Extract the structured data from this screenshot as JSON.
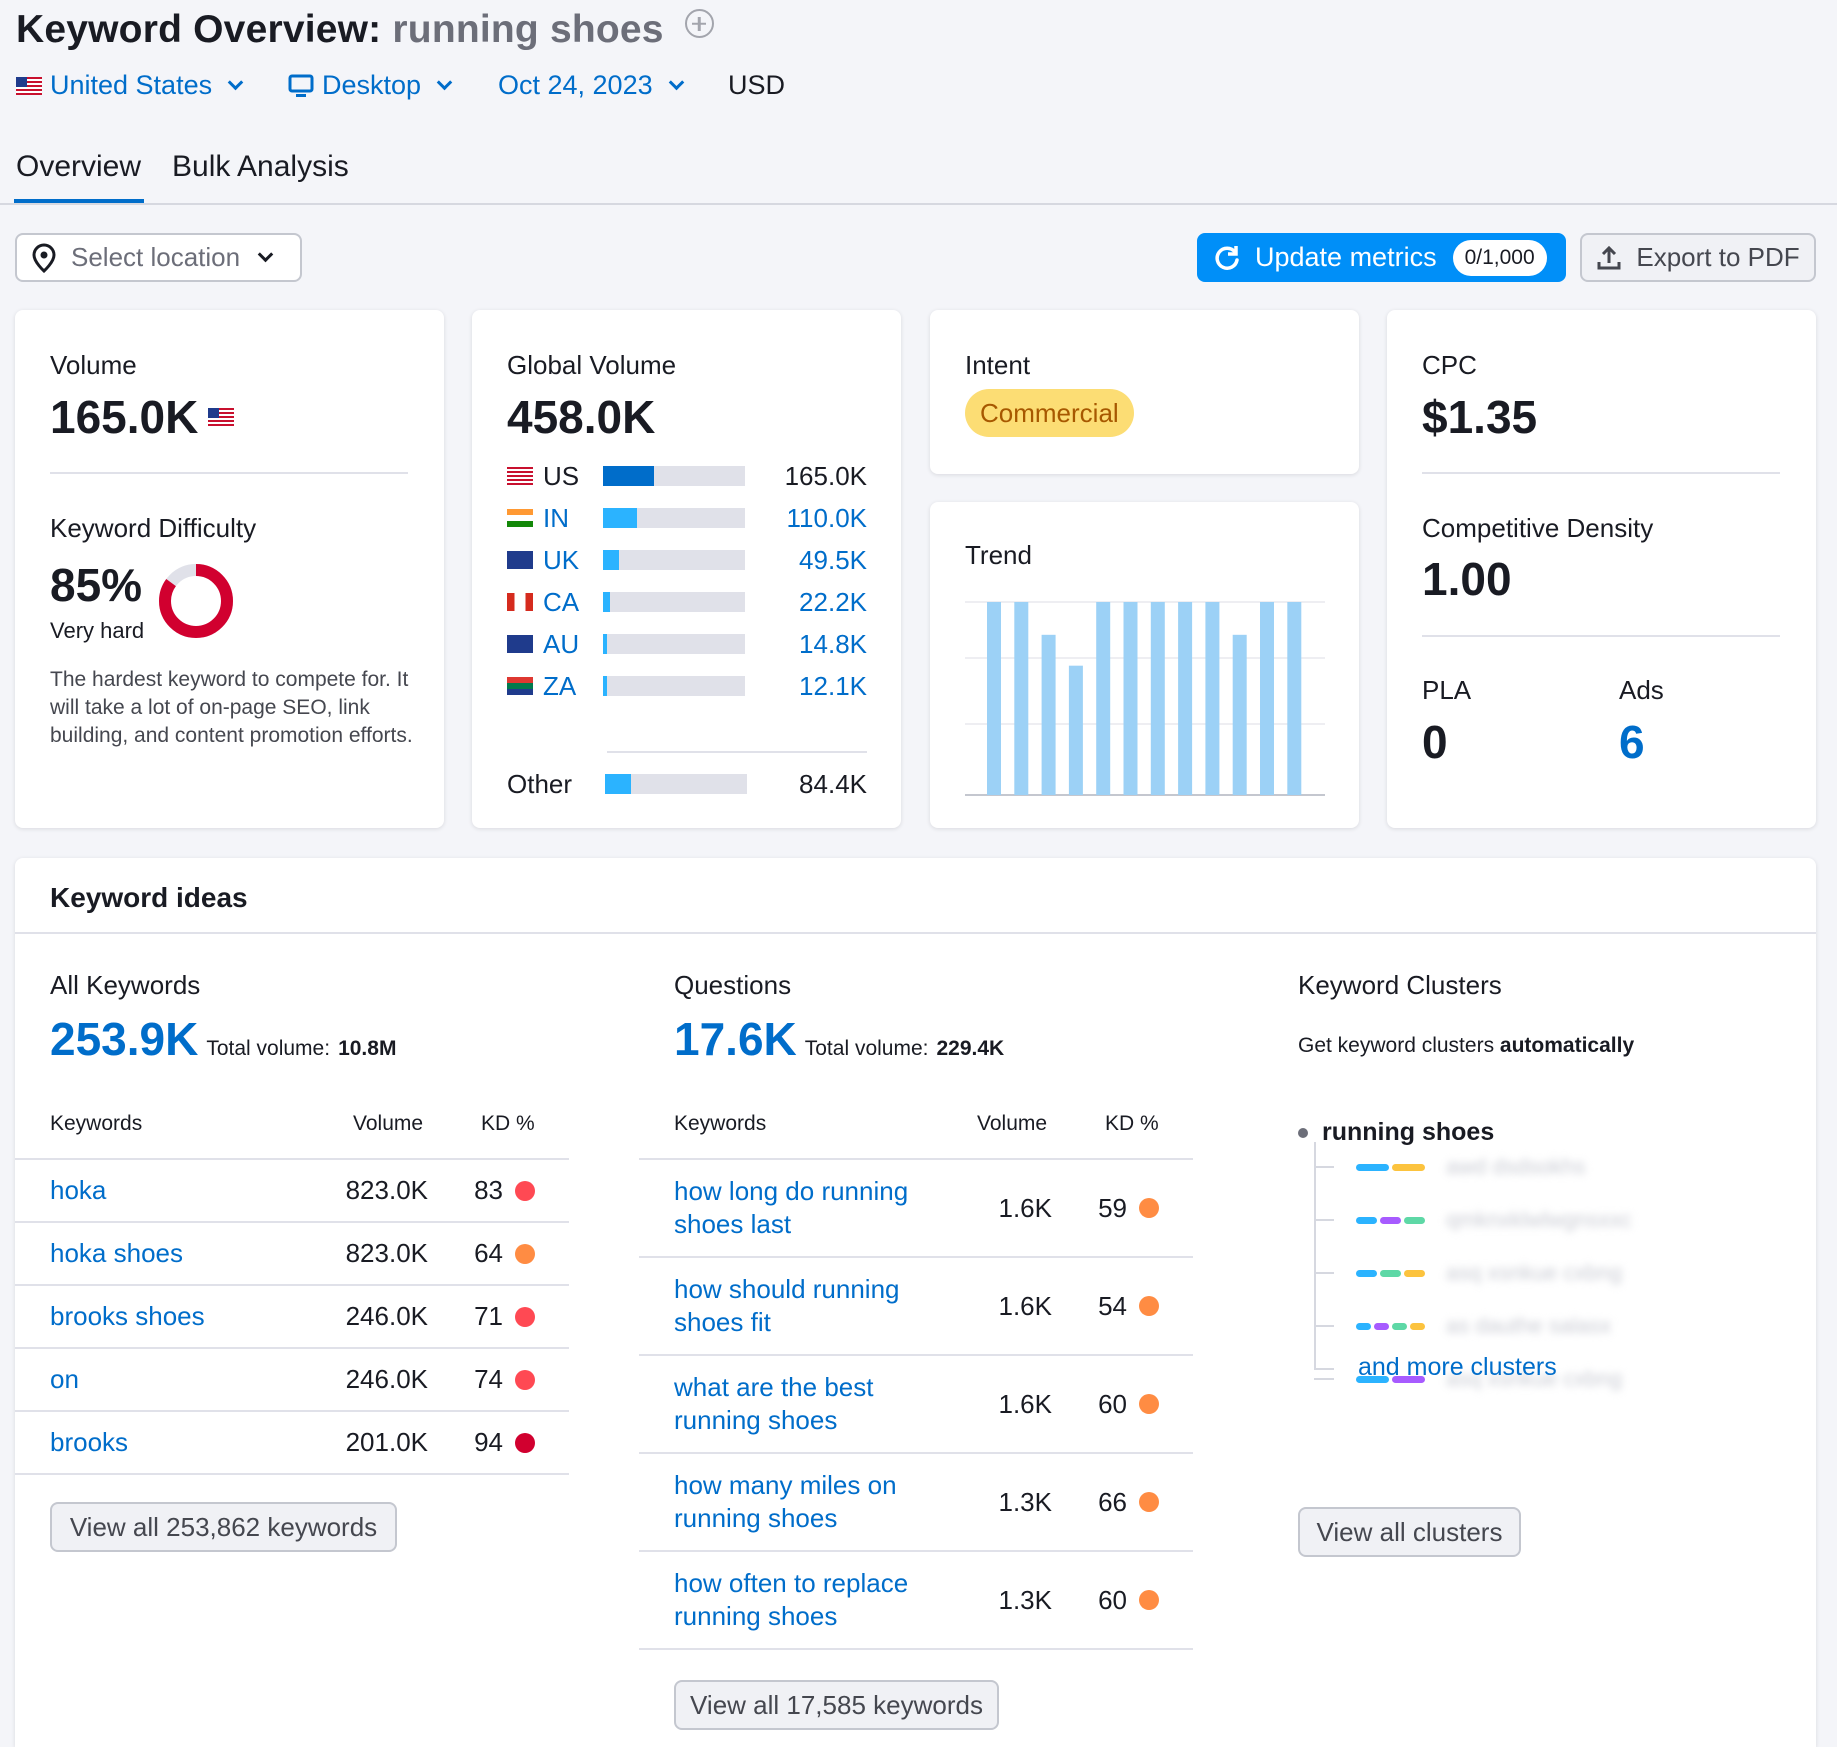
{
  "header": {
    "title_prefix": "Keyword Overview:",
    "keyword": "running shoes"
  },
  "filters": {
    "country": "United States",
    "device": "Desktop",
    "date": "Oct 24, 2023",
    "currency": "USD"
  },
  "tabs": [
    {
      "label": "Overview",
      "active": true
    },
    {
      "label": "Bulk Analysis",
      "active": false
    }
  ],
  "toolbar": {
    "location_placeholder": "Select location",
    "update_label": "Update metrics",
    "update_count": "0/1,000",
    "export_label": "Export to PDF"
  },
  "volume": {
    "label": "Volume",
    "value": "165.0K"
  },
  "kd": {
    "label": "Keyword Difficulty",
    "value": "85%",
    "percent": 85,
    "level": "Very hard",
    "description": "The hardest keyword to compete for. It will take a lot of on-page SEO, link building, and content promotion efforts."
  },
  "global": {
    "label": "Global Volume",
    "value": "458.0K",
    "rows": [
      {
        "code": "US",
        "value": "165.0K",
        "fraction": 0.36
      },
      {
        "code": "IN",
        "value": "110.0K",
        "fraction": 0.24
      },
      {
        "code": "UK",
        "value": "49.5K",
        "fraction": 0.11
      },
      {
        "code": "CA",
        "value": "22.2K",
        "fraction": 0.05
      },
      {
        "code": "AU",
        "value": "14.8K",
        "fraction": 0.03
      },
      {
        "code": "ZA",
        "value": "12.1K",
        "fraction": 0.03
      }
    ],
    "other": {
      "label": "Other",
      "value": "84.4K",
      "fraction": 0.18
    }
  },
  "intent": {
    "label": "Intent",
    "value": "Commercial"
  },
  "trend": {
    "label": "Trend",
    "values": [
      1,
      1,
      0.83,
      0.67,
      1,
      1,
      1,
      1,
      1,
      0.83,
      1,
      1
    ]
  },
  "cpc": {
    "label": "CPC",
    "value": "$1.35"
  },
  "density": {
    "label": "Competitive Density",
    "value": "1.00"
  },
  "pla": {
    "label": "PLA",
    "value": "0"
  },
  "ads": {
    "label": "Ads",
    "value": "6"
  },
  "ideas": {
    "title": "Keyword ideas",
    "all": {
      "label": "All Keywords",
      "count": "253.9K",
      "total_label": "Total volume:",
      "total": "10.8M",
      "headers": {
        "kw": "Keywords",
        "vol": "Volume",
        "kd": "KD %"
      },
      "rows": [
        {
          "kw": "hoka",
          "vol": "823.0K",
          "kd": "83",
          "color": "#ff4953"
        },
        {
          "kw": "hoka shoes",
          "vol": "823.0K",
          "kd": "64",
          "color": "#ff8c43"
        },
        {
          "kw": "brooks shoes",
          "vol": "246.0K",
          "kd": "71",
          "color": "#ff4953"
        },
        {
          "kw": "on",
          "vol": "246.0K",
          "kd": "74",
          "color": "#ff4953"
        },
        {
          "kw": "brooks",
          "vol": "201.0K",
          "kd": "94",
          "color": "#d1002f"
        }
      ],
      "view_all": "View all 253,862 keywords"
    },
    "questions": {
      "label": "Questions",
      "count": "17.6K",
      "total_label": "Total volume:",
      "total": "229.4K",
      "headers": {
        "kw": "Keywords",
        "vol": "Volume",
        "kd": "KD %"
      },
      "rows": [
        {
          "kw1": "how long do running",
          "kw2": "shoes last",
          "vol": "1.6K",
          "kd": "59",
          "color": "#ff8c43"
        },
        {
          "kw1": "how should running",
          "kw2": "shoes fit",
          "vol": "1.6K",
          "kd": "54",
          "color": "#ff8c43"
        },
        {
          "kw1": "what are the best",
          "kw2": "running shoes",
          "vol": "1.6K",
          "kd": "60",
          "color": "#ff8c43"
        },
        {
          "kw1": "how many miles on",
          "kw2": "running shoes",
          "vol": "1.3K",
          "kd": "66",
          "color": "#ff8c43"
        },
        {
          "kw1": "how often to replace",
          "kw2": "running shoes",
          "vol": "1.3K",
          "kd": "60",
          "color": "#ff8c43"
        }
      ],
      "view_all": "View all 17,585 keywords"
    },
    "clusters": {
      "label": "Keyword Clusters",
      "desc_prefix": "Get keyword clusters",
      "desc_bold": "automatically",
      "root": "running shoes",
      "items": [
        "awd dsdsokhs",
        "qmknxklwlwgnsxxc",
        "asq xsnkue cxbng",
        "as dauthe salasx",
        "asq xsnkue cxbng"
      ],
      "more": "and more clusters",
      "view_all": "View all clusters"
    }
  }
}
